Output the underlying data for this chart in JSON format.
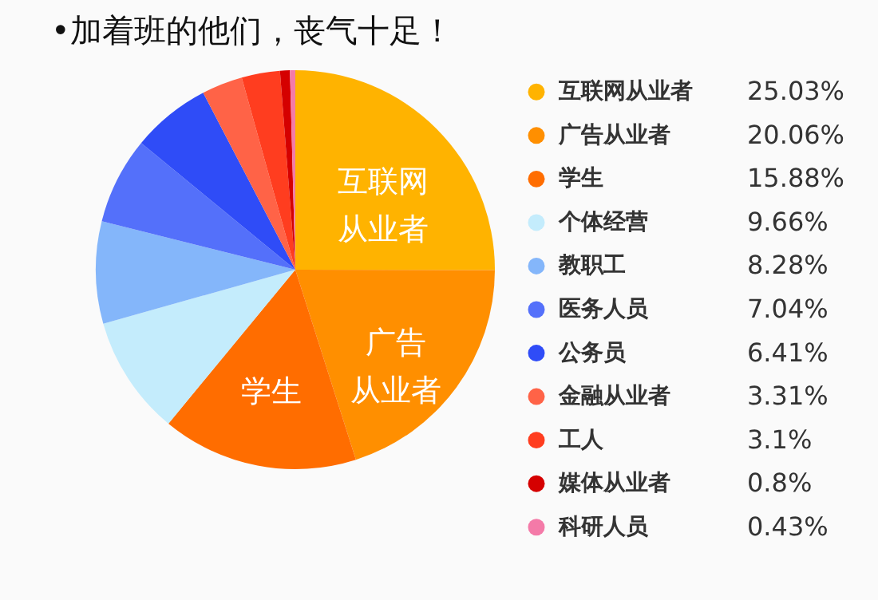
{
  "chart_data": {
    "type": "pie",
    "title": "•加着班的他们，丧气十足！",
    "categories": [
      "互联网从业者",
      "广告从业者",
      "学生",
      "个体经营",
      "教职工",
      "医务人员",
      "公务员",
      "金融从业者",
      "工人",
      "媒体从业者",
      "科研人员"
    ],
    "values": [
      25.03,
      20.06,
      15.88,
      9.66,
      8.28,
      7.04,
      6.41,
      3.31,
      3.1,
      0.8,
      0.43
    ],
    "value_labels": [
      "25.03%",
      "20.06%",
      "15.88%",
      "9.66%",
      "8.28%",
      "7.04%",
      "6.41%",
      "3.31%",
      "3.1%",
      "0.8%",
      "0.43%"
    ],
    "colors": [
      "#ffb300",
      "#ff8f00",
      "#ff6d00",
      "#c4ecfc",
      "#84b6fa",
      "#5470fa",
      "#2f4cf7",
      "#ff6347",
      "#ff3d1f",
      "#d50000",
      "#f47aa8"
    ],
    "annotations": [
      {
        "text": "互联网从业者",
        "x": "互联网从业者"
      },
      {
        "text": "广告从业者",
        "x": "广告从业者"
      },
      {
        "text": "学生",
        "x": "学生"
      }
    ],
    "legend": "right"
  }
}
